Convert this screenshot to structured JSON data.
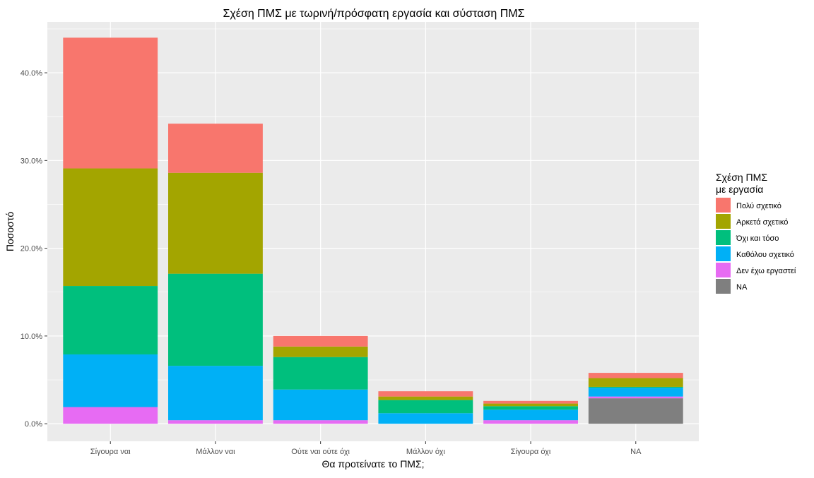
{
  "chart_data": {
    "type": "bar",
    "stacked": true,
    "title": "Σχέση ΠΜΣ με τωρινή/πρόσφατη εργασία και σύσταση ΠΜΣ",
    "xlabel": "Θα προτείνατε το ΠΜΣ;",
    "ylabel": "Ποσοστό",
    "ylim": [
      -2.0,
      45.8
    ],
    "yticks": [
      0,
      10,
      20,
      30,
      40
    ],
    "ytick_labels": [
      "0.0%",
      "10.0%",
      "20.0%",
      "30.0%",
      "40.0%"
    ],
    "grid": true,
    "legend_position": "right",
    "legend_title": [
      "Σχέση ΠΜΣ",
      "με εργασία"
    ],
    "categories": [
      "Σίγουρα ναι",
      "Μάλλον ναι",
      "Ούτε ναι ούτε όχι",
      "Μάλλον όχι",
      "Σίγουρα όχι",
      "NA"
    ],
    "series": [
      {
        "name": "Πολύ σχετικό",
        "color": "#F8766D",
        "values": [
          14.9,
          5.6,
          1.2,
          0.6,
          0.3,
          0.6
        ]
      },
      {
        "name": "Αρκετά σχετικό",
        "color": "#A3A500",
        "values": [
          13.4,
          11.5,
          1.2,
          0.4,
          0.3,
          1.0
        ]
      },
      {
        "name": "Όχι και τόσο",
        "color": "#00BF7D",
        "values": [
          7.8,
          10.5,
          3.7,
          1.5,
          0.4,
          0.1
        ]
      },
      {
        "name": "Καθόλου σχετικό",
        "color": "#00B0F6",
        "values": [
          6.0,
          6.2,
          3.5,
          1.2,
          1.2,
          1.0
        ]
      },
      {
        "name": "Δεν έχω εργαστεί",
        "color": "#E76BF3",
        "values": [
          1.9,
          0.4,
          0.4,
          0.0,
          0.4,
          0.2
        ]
      },
      {
        "name": "NA",
        "color": "#7F7F7F",
        "values": [
          0,
          0,
          0,
          0,
          0,
          2.9
        ]
      }
    ]
  }
}
